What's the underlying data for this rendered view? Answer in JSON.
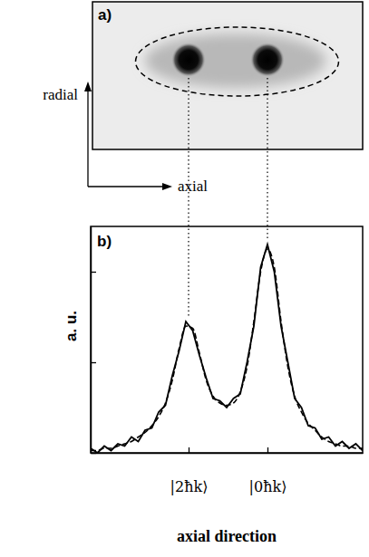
{
  "chart_data": {
    "type": "line",
    "panel_label": "b)",
    "x_label": "axial direction",
    "y_label": "a. u.",
    "x": [
      0,
      2.5,
      5,
      7.5,
      10,
      12.5,
      15,
      17.5,
      20,
      22.5,
      25,
      27.5,
      30,
      32.5,
      35,
      37.5,
      40,
      42.5,
      45,
      47.5,
      50,
      52.5,
      55,
      57.5,
      60,
      62.5,
      65,
      67.5,
      70,
      72.5,
      75,
      77.5,
      80,
      82.5,
      85,
      87.5,
      90,
      92.5,
      95,
      97.5,
      100
    ],
    "series": [
      {
        "color": "#000000",
        "line_style": "solid",
        "values": [
          0.02,
          0.0,
          0.03,
          0.01,
          0.04,
          0.03,
          0.07,
          0.05,
          0.1,
          0.11,
          0.18,
          0.21,
          0.34,
          0.45,
          0.58,
          0.54,
          0.43,
          0.33,
          0.24,
          0.23,
          0.2,
          0.24,
          0.26,
          0.4,
          0.56,
          0.82,
          0.92,
          0.8,
          0.56,
          0.4,
          0.24,
          0.2,
          0.12,
          0.11,
          0.06,
          0.07,
          0.03,
          0.05,
          0.02,
          0.04,
          0.01
        ]
      },
      {
        "color": "#000000",
        "line_style": "dashed",
        "values": [
          0.01,
          0.01,
          0.02,
          0.02,
          0.03,
          0.04,
          0.05,
          0.07,
          0.09,
          0.12,
          0.16,
          0.22,
          0.32,
          0.46,
          0.56,
          0.55,
          0.44,
          0.32,
          0.25,
          0.22,
          0.21,
          0.22,
          0.27,
          0.38,
          0.58,
          0.8,
          0.9,
          0.82,
          0.58,
          0.38,
          0.25,
          0.18,
          0.13,
          0.1,
          0.07,
          0.05,
          0.04,
          0.03,
          0.03,
          0.02,
          0.02
        ]
      }
    ],
    "xlim": [
      0,
      100
    ],
    "ylim": [
      0,
      1
    ],
    "xticks": [
      {
        "value": 36,
        "label": "|2ħk⟩"
      },
      {
        "value": 65,
        "label": "|0ħk⟩"
      }
    ],
    "yticks": [
      0,
      0.4,
      0.8
    ],
    "tick_labels": "x",
    "grid": false
  },
  "image_panel": {
    "label": "a)",
    "vertical_label": "radial",
    "horizontal_label": "axial"
  }
}
